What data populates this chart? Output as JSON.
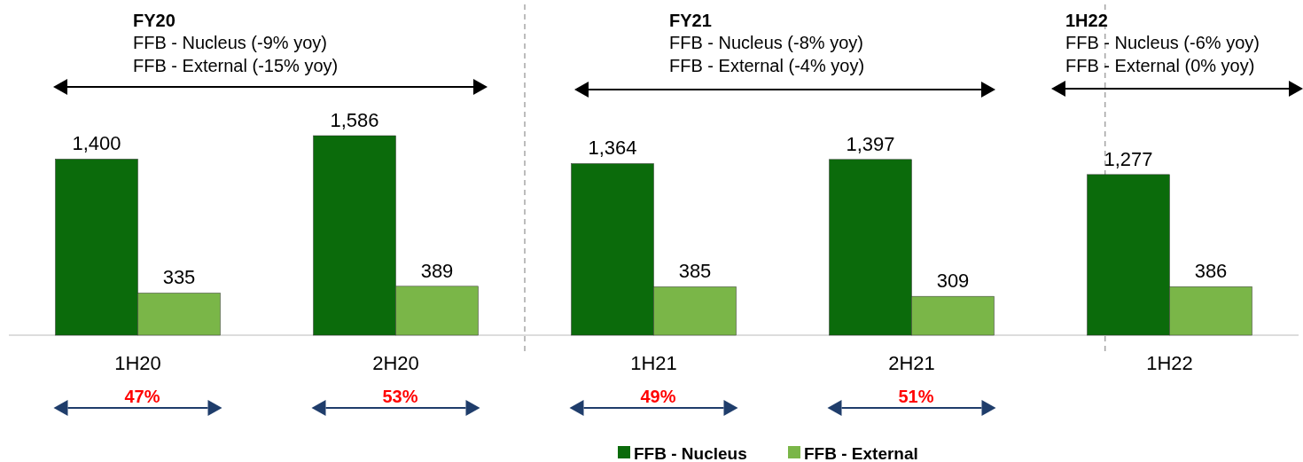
{
  "chart_data": {
    "type": "bar",
    "categories": [
      "1H20",
      "2H20",
      "1H21",
      "2H21",
      "1H22"
    ],
    "series": [
      {
        "name": "FFB - Nucleus",
        "color": "#0b6b0b",
        "values": [
          1400,
          1586,
          1364,
          1397,
          1277
        ],
        "value_labels": [
          "1,400",
          "1,586",
          "1,364",
          "1,397",
          "1,277"
        ]
      },
      {
        "name": "FFB - External",
        "color": "#7ab648",
        "values": [
          335,
          389,
          385,
          309,
          386
        ],
        "value_labels": [
          "335",
          "389",
          "385",
          "309",
          "386"
        ]
      }
    ],
    "legend": "bottom",
    "annotations": [
      "FY20",
      "FFB - Nucleus (-9% yoy)",
      "FFB - External (-15% yoy)",
      "FY21",
      "FFB - Nucleus (-8% yoy)",
      "FFB - External (-4% yoy)",
      "1H22",
      "FFB - Nucleus (-6% yoy)",
      "FFB - External (0% yoy)",
      "47%",
      "53%",
      "49%",
      "51%"
    ]
  }
}
